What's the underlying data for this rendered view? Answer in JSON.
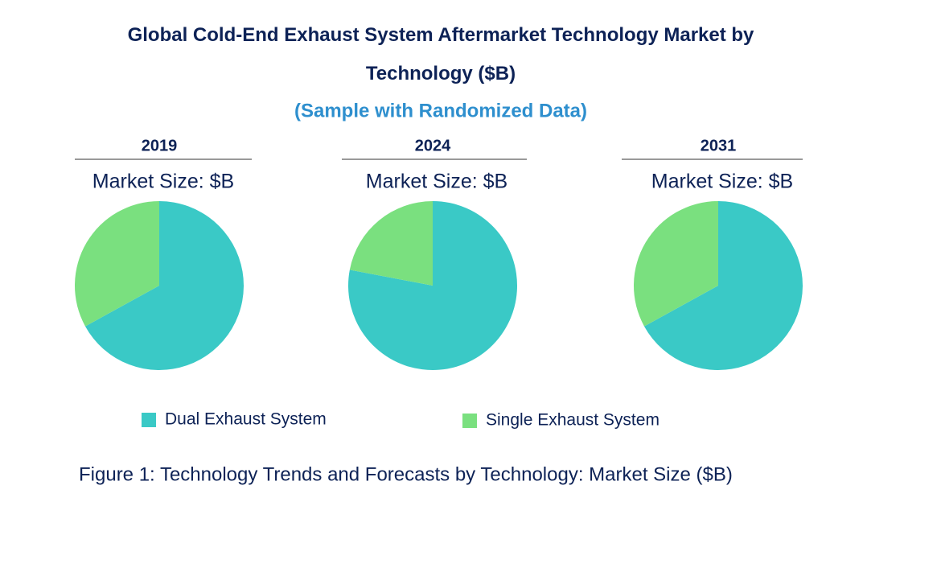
{
  "title": "Global Cold-End Exhaust System Aftermarket Technology Market by Technology ($B)",
  "subtitle": "(Sample with Randomized Data)",
  "legend": [
    {
      "name": "Dual Exhaust System",
      "color": "#3ac9c6"
    },
    {
      "name": "Single Exhaust System",
      "color": "#7ae07f"
    }
  ],
  "caption": "Figure 1: Technology Trends and Forecasts by Technology: Market Size ($B)",
  "chart_data": [
    {
      "type": "pie",
      "title": "2019",
      "subtitle": "Market Size: $B",
      "values": [
        67,
        33
      ]
    },
    {
      "type": "pie",
      "title": "2024",
      "subtitle": "Market Size: $B",
      "values": [
        78,
        22
      ]
    },
    {
      "type": "pie",
      "title": "2031",
      "subtitle": "Market Size: $B",
      "values": [
        67,
        33
      ]
    }
  ]
}
